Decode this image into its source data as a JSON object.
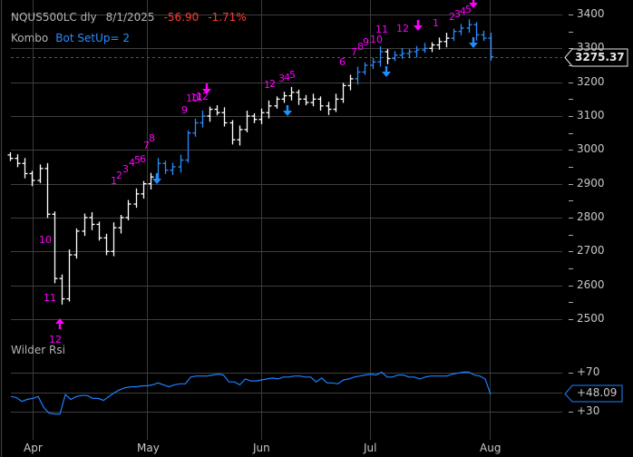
{
  "header": {
    "symbol": "NQUS500LC dly",
    "date": "8/1/2025",
    "change": "-56.90",
    "change_pct": "-1.71%",
    "indicator_name": "Kombo",
    "indicator_value": "Bot SetUp=  2"
  },
  "price_axis": {
    "ticks": [
      "3400",
      "3300",
      "3200",
      "3100",
      "3000",
      "2900",
      "2800",
      "2700",
      "2600",
      "2500"
    ],
    "last_price": "3275.37"
  },
  "rsi_panel": {
    "title": "Wilder Rsi",
    "ticks": [
      "+70",
      "+30"
    ],
    "last_value": "+48.09"
  },
  "x_axis": {
    "months": [
      "Apr",
      "May",
      "Jun",
      "Jul",
      "Aug"
    ]
  },
  "colors": {
    "background": "#000000",
    "up_bar_setup": "#2a8cff",
    "bar": "#ffffff",
    "count_label": "#ff00ff",
    "buy_arrow": "#1e90ff",
    "sell_arrow": "#ff00ff",
    "rsi_line": "#1e7fff",
    "change_negative": "#ff3b2f",
    "indicator_value": "#2a8cff"
  },
  "chart_data": [
    {
      "type": "ohlc",
      "title": "NQUS500LC dly",
      "xlabel": "",
      "ylabel": "",
      "ylim": [
        2440,
        3420
      ],
      "categories": [
        "Apr",
        "May",
        "Jun",
        "Jul",
        "Aug"
      ],
      "last_close": 3275.37,
      "change": -56.9,
      "change_pct": -1.71,
      "grid": true,
      "approx_closes_by_period": {
        "late_mar": [
          2975,
          2960,
          2930,
          2910,
          2945
        ],
        "early_apr": [
          2810,
          2620,
          2560,
          2690,
          2760
        ],
        "mid_apr": [
          2800,
          2780,
          2740,
          2700,
          2770
        ],
        "late_apr": [
          2800,
          2840,
          2870,
          2900,
          2920
        ],
        "early_may": [
          2960,
          2940,
          2950,
          2970,
          3050
        ],
        "mid_may": [
          3080,
          3100,
          3120,
          3110,
          3080
        ],
        "late_may": [
          3030,
          3060,
          3100,
          3090,
          3110
        ],
        "early_jun": [
          3130,
          3150,
          3160,
          3170,
          3150
        ],
        "mid_jun": [
          3140,
          3150,
          3130,
          3120,
          3150
        ],
        "late_jun": [
          3190,
          3210,
          3230,
          3250,
          3260
        ],
        "early_jul": [
          3290,
          3270,
          3280,
          3285,
          3290
        ],
        "mid_jul": [
          3295,
          3300,
          3310,
          3320,
          3330
        ],
        "late_jul": [
          3350,
          3360,
          3370,
          3340,
          3330
        ],
        "aug_1": [
          3275
        ]
      },
      "annotations": [
        {
          "text": "10",
          "type": "count",
          "x": "early Apr",
          "y": 2725
        },
        {
          "text": "11",
          "type": "count",
          "x": "early Apr",
          "y": 2580
        },
        {
          "text": "12",
          "type": "count",
          "x": "early Apr",
          "y": 2480
        },
        {
          "text": "buy arrow",
          "type": "arrow-up",
          "x": "early Apr",
          "y": 2505
        },
        {
          "text": "1",
          "type": "count",
          "x": "late Apr",
          "y": 2915
        },
        {
          "text": "2",
          "type": "count",
          "x": "late Apr",
          "y": 2925
        },
        {
          "text": "3",
          "type": "count",
          "x": "late Apr",
          "y": 2935
        },
        {
          "text": "4",
          "type": "count",
          "x": "late Apr",
          "y": 2945
        },
        {
          "text": "5",
          "type": "count",
          "x": "late Apr",
          "y": 2955
        },
        {
          "text": "6",
          "type": "count",
          "x": "late Apr",
          "y": 2960
        },
        {
          "text": "7",
          "type": "count",
          "x": "early May",
          "y": 3000
        },
        {
          "text": "8",
          "type": "count",
          "x": "early May",
          "y": 3020
        },
        {
          "text": "setup arrow",
          "type": "arrow-down-blue",
          "x": "early May",
          "y": 2910
        },
        {
          "text": "9",
          "type": "count",
          "x": "mid May",
          "y": 3120
        },
        {
          "text": "10",
          "type": "count",
          "x": "mid May",
          "y": 3150
        },
        {
          "text": "11",
          "type": "count",
          "x": "mid May",
          "y": 3150
        },
        {
          "text": "12",
          "type": "count",
          "x": "mid May",
          "y": 3155
        },
        {
          "text": "sell arrow",
          "type": "arrow-down-magenta",
          "x": "mid May",
          "y": 3180
        },
        {
          "text": "1",
          "type": "count",
          "x": "early Jun",
          "y": 3200
        },
        {
          "text": "2",
          "type": "count",
          "x": "early Jun",
          "y": 3200
        },
        {
          "text": "3",
          "type": "count",
          "x": "early Jun",
          "y": 3210
        },
        {
          "text": "4",
          "type": "count",
          "x": "early Jun",
          "y": 3210
        },
        {
          "text": "5",
          "type": "count",
          "x": "early Jun",
          "y": 3215
        },
        {
          "text": "setup arrow",
          "type": "arrow-down-blue",
          "x": "early Jun",
          "y": 3110
        },
        {
          "text": "6",
          "type": "count",
          "x": "late Jun",
          "y": 3260
        },
        {
          "text": "7",
          "type": "count",
          "x": "late Jun",
          "y": 3285
        },
        {
          "text": "8",
          "type": "count",
          "x": "late Jun",
          "y": 3300
        },
        {
          "text": "9",
          "type": "count",
          "x": "late Jun",
          "y": 3310
        },
        {
          "text": "10",
          "type": "count",
          "x": "early Jul",
          "y": 3310
        },
        {
          "text": "11",
          "type": "count",
          "x": "early Jul",
          "y": 3345
        },
        {
          "text": "setup arrow",
          "type": "arrow-down-blue",
          "x": "early Jul",
          "y": 3230
        },
        {
          "text": "12",
          "type": "count",
          "x": "early Jul",
          "y": 3345
        },
        {
          "text": "sell arrow",
          "type": "arrow-down-magenta",
          "x": "mid Jul",
          "y": 3370
        },
        {
          "text": "1",
          "type": "count",
          "x": "mid Jul",
          "y": 3355
        },
        {
          "text": "2",
          "type": "count",
          "x": "late Jul",
          "y": 3385
        },
        {
          "text": "3",
          "type": "count",
          "x": "late Jul",
          "y": 3395
        },
        {
          "text": "4",
          "type": "count",
          "x": "late Jul",
          "y": 3400
        },
        {
          "text": "5",
          "type": "count",
          "x": "late Jul",
          "y": 3410
        },
        {
          "text": "sell arrow",
          "type": "arrow-down-magenta",
          "x": "late Jul",
          "y": 3425
        },
        {
          "text": "setup arrow",
          "type": "arrow-down-blue",
          "x": "late Jul",
          "y": 3310
        }
      ]
    },
    {
      "type": "line",
      "title": "Wilder Rsi",
      "ylim": [
        10,
        90
      ],
      "reference_lines": [
        70,
        30
      ],
      "categories": [
        "Apr",
        "May",
        "Jun",
        "Jul",
        "Aug"
      ],
      "last_value": 48.09,
      "series": [
        {
          "name": "Wilder RSI",
          "values": [
            46,
            45,
            41,
            43,
            44,
            46,
            35,
            29,
            28,
            28,
            48,
            43,
            46,
            47,
            47,
            44,
            44,
            42,
            46,
            50,
            53,
            55,
            56,
            56,
            57,
            57,
            58,
            60,
            58,
            56,
            58,
            59,
            59,
            66,
            67,
            67,
            67,
            68,
            69,
            68,
            61,
            61,
            58,
            64,
            62,
            62,
            63,
            64,
            65,
            64,
            66,
            66,
            67,
            67,
            66,
            66,
            61,
            65,
            60,
            60,
            59,
            63,
            64,
            66,
            67,
            68,
            69,
            68,
            71,
            66,
            66,
            68,
            68,
            66,
            66,
            64,
            66,
            67,
            67,
            67,
            67,
            69,
            70,
            71,
            71,
            68,
            67,
            64,
            48
          ]
        }
      ]
    }
  ]
}
